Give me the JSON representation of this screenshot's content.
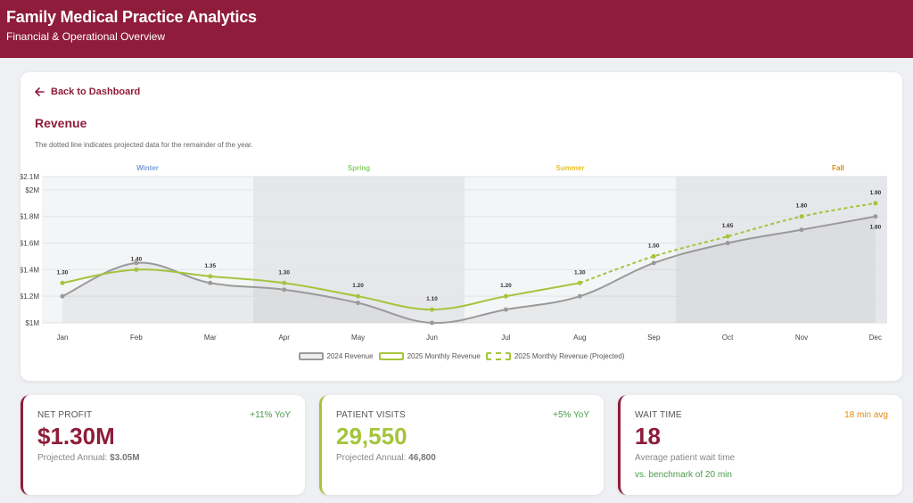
{
  "header": {
    "title": "Family Medical Practice Analytics",
    "subtitle": "Financial & Operational Overview"
  },
  "colors": {
    "brand": "#8f1c3b",
    "green": "#a5c43c",
    "gray": "#9a9a9a",
    "positive": "#4a9b4a",
    "orange": "#e08a12"
  },
  "revenue": {
    "back_label": "Back to Dashboard",
    "title": "Revenue",
    "note": "The dotted line indicates projected data for the remainder of the year."
  },
  "chart_data": {
    "type": "line",
    "categories": [
      "Jan",
      "Feb",
      "Mar",
      "Apr",
      "May",
      "Jun",
      "Jul",
      "Aug",
      "Sep",
      "Oct",
      "Nov",
      "Dec"
    ],
    "y_ticks": [
      {
        "value": 1.0,
        "label": "$1M"
      },
      {
        "value": 1.2,
        "label": "$1.2M"
      },
      {
        "value": 1.4,
        "label": "$1.4M"
      },
      {
        "value": 1.6,
        "label": "$1.6M"
      },
      {
        "value": 1.8,
        "label": "$1.8M"
      },
      {
        "value": 2.0,
        "label": "$2M"
      },
      {
        "value": 2.1,
        "label": "$2.1M"
      }
    ],
    "ylim": [
      1.0,
      2.1
    ],
    "seasons": [
      {
        "name": "Winter",
        "start": 0,
        "end": 3,
        "color": "#7aa0d6",
        "shaded": false
      },
      {
        "name": "Spring",
        "start": 3,
        "end": 6,
        "color": "#8bcf6a",
        "shaded": true
      },
      {
        "name": "Summer",
        "start": 6,
        "end": 9,
        "color": "#e6c229",
        "shaded": false
      },
      {
        "name": "Fall",
        "start": 9,
        "end": 12,
        "color": "#e08a12",
        "shaded": true
      }
    ],
    "series": [
      {
        "name": "2024 Revenue",
        "color": "#9a9a9a",
        "values": [
          1.2,
          1.45,
          1.3,
          1.25,
          1.15,
          1.0,
          1.1,
          1.2,
          1.45,
          1.6,
          1.7,
          1.8
        ],
        "labels": [
          null,
          null,
          null,
          null,
          null,
          null,
          null,
          null,
          null,
          null,
          null,
          "1.80"
        ]
      },
      {
        "name": "2025 Monthly Revenue",
        "color": "#a5c43c",
        "values": [
          1.3,
          1.4,
          1.35,
          1.3,
          1.2,
          1.1,
          1.2,
          1.3,
          null,
          null,
          null,
          null
        ],
        "labels": [
          "1.30",
          "1.40",
          "1.35",
          "1.30",
          "1.20",
          "1.10",
          "1.20",
          "1.30",
          null,
          null,
          null,
          null
        ]
      },
      {
        "name": "2025 Monthly Revenue (Projected)",
        "color": "#a5c43c",
        "dashed": true,
        "values": [
          null,
          null,
          null,
          null,
          null,
          null,
          null,
          1.3,
          1.5,
          1.65,
          1.8,
          1.9
        ],
        "labels": [
          null,
          null,
          null,
          null,
          null,
          null,
          null,
          null,
          "1.50",
          "1.65",
          "1.80",
          "1.90"
        ]
      }
    ]
  },
  "kpis": {
    "net_profit": {
      "label": "NET PROFIT",
      "delta": "+11% YoY",
      "value": "$1.30M",
      "line3_prefix": "Projected Annual: ",
      "line3_value": "$3.05M"
    },
    "patient_visits": {
      "label": "PATIENT VISITS",
      "delta": "+5% YoY",
      "value": "29,550",
      "line3_prefix": "Projected Annual: ",
      "line3_value": "46,800"
    },
    "wait_time": {
      "label": "WAIT TIME",
      "delta": "18 min avg",
      "value": "18",
      "line3": "Average patient wait time",
      "line4": "vs. benchmark of 20 min"
    }
  }
}
